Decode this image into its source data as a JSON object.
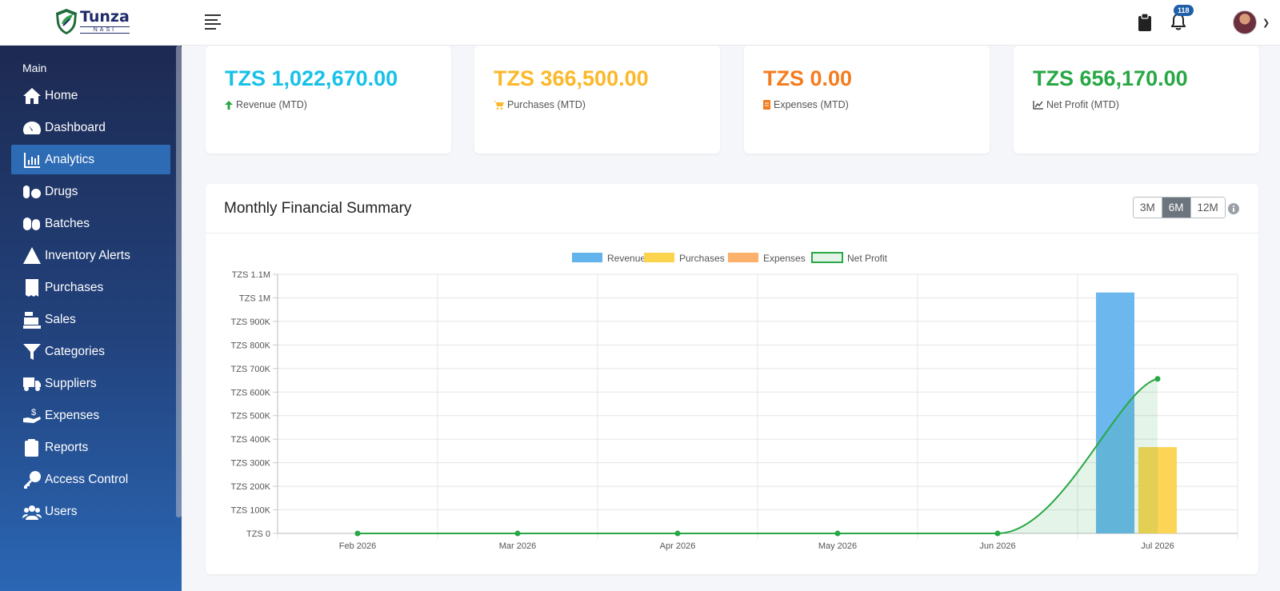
{
  "header": {
    "logo_title": "Tunza",
    "logo_subtitle": "NASI",
    "notification_count": "118"
  },
  "sidebar": {
    "section": "Main",
    "items": [
      {
        "label": "Home",
        "icon": "home-icon"
      },
      {
        "label": "Dashboard",
        "icon": "dashboard-icon"
      },
      {
        "label": "Analytics",
        "icon": "analytics-icon",
        "active": true
      },
      {
        "label": "Drugs",
        "icon": "pills-icon"
      },
      {
        "label": "Batches",
        "icon": "capsules-icon"
      },
      {
        "label": "Inventory Alerts",
        "icon": "warning-icon"
      },
      {
        "label": "Purchases",
        "icon": "receipt-icon"
      },
      {
        "label": "Sales",
        "icon": "cash-register-icon"
      },
      {
        "label": "Categories",
        "icon": "filter-icon"
      },
      {
        "label": "Suppliers",
        "icon": "truck-icon"
      },
      {
        "label": "Expenses",
        "icon": "hand-dollar-icon"
      },
      {
        "label": "Reports",
        "icon": "clipboard-icon"
      },
      {
        "label": "Access Control",
        "icon": "key-icon"
      },
      {
        "label": "Users",
        "icon": "users-icon"
      }
    ]
  },
  "kpis": [
    {
      "value": "TZS 1,022,670.00",
      "label": "Revenue (MTD)",
      "color": "#17c1e8",
      "icon": "arrow-up-icon"
    },
    {
      "value": "TZS 366,500.00",
      "label": "Purchases (MTD)",
      "color": "#fbb829",
      "icon": "cart-icon"
    },
    {
      "value": "TZS 0.00",
      "label": "Expenses (MTD)",
      "color": "#f47c20",
      "icon": "file-icon"
    },
    {
      "value": "TZS 656,170.00",
      "label": "Net Profit (MTD)",
      "color": "#28a745",
      "icon": "line-chart-icon"
    }
  ],
  "summary": {
    "title": "Monthly Financial Summary",
    "ranges": [
      "3M",
      "6M",
      "12M"
    ],
    "active_range": "6M"
  },
  "chart_data": {
    "type": "bar",
    "categories": [
      "Feb 2026",
      "Mar 2026",
      "Apr 2026",
      "May 2026",
      "Jun 2026",
      "Jul 2026"
    ],
    "series": [
      {
        "name": "Revenue",
        "type": "bar",
        "color": "#63b3ed",
        "values": [
          0,
          0,
          0,
          0,
          0,
          1022670
        ]
      },
      {
        "name": "Purchases",
        "type": "bar",
        "color": "#fcd34d",
        "values": [
          0,
          0,
          0,
          0,
          0,
          366500
        ]
      },
      {
        "name": "Expenses",
        "type": "bar",
        "color": "#fbb06b",
        "values": [
          0,
          0,
          0,
          0,
          0,
          0
        ]
      },
      {
        "name": "Net Profit",
        "type": "line",
        "color": "#28a745",
        "values": [
          0,
          0,
          0,
          0,
          0,
          656170
        ]
      }
    ],
    "ylim": [
      0,
      1100000
    ],
    "yticks": [
      {
        "value": 0,
        "label": "TZS 0"
      },
      {
        "value": 100000,
        "label": "TZS 100K"
      },
      {
        "value": 200000,
        "label": "TZS 200K"
      },
      {
        "value": 300000,
        "label": "TZS 300K"
      },
      {
        "value": 400000,
        "label": "TZS 400K"
      },
      {
        "value": 500000,
        "label": "TZS 500K"
      },
      {
        "value": 600000,
        "label": "TZS 600K"
      },
      {
        "value": 700000,
        "label": "TZS 700K"
      },
      {
        "value": 800000,
        "label": "TZS 800K"
      },
      {
        "value": 900000,
        "label": "TZS 900K"
      },
      {
        "value": 1000000,
        "label": "TZS 1M"
      },
      {
        "value": 1100000,
        "label": "TZS 1.1M"
      }
    ],
    "grid": true,
    "legend_position": "top-center"
  }
}
